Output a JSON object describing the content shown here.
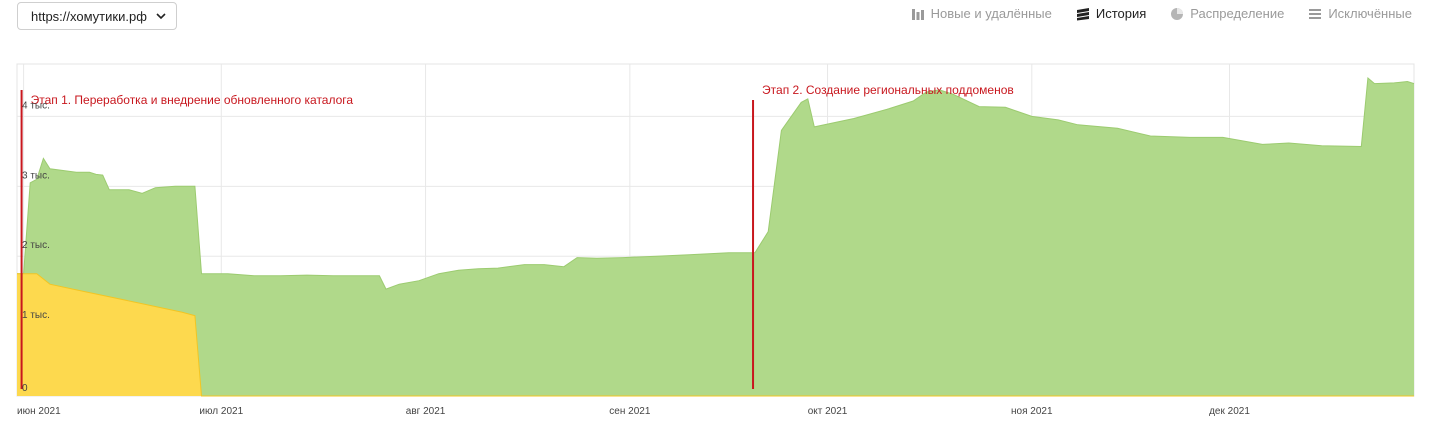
{
  "site_selector": {
    "value": "https://хомутики.рф"
  },
  "tabs": [
    {
      "label": "Новые и удалённые",
      "icon": "bar-chart-icon",
      "active": false
    },
    {
      "label": "История",
      "icon": "layers-icon",
      "active": true
    },
    {
      "label": "Распределение",
      "icon": "pie-chart-icon",
      "active": false
    },
    {
      "label": "Исключённые",
      "icon": "stack-icon",
      "active": false
    }
  ],
  "colors": {
    "green": "#b0d98a",
    "yellow": "#fdd94e",
    "annotation": "#c8171e"
  },
  "chart_data": {
    "type": "area",
    "x_tick_labels": [
      "июн 2021",
      "июл 2021",
      "авг 2021",
      "сен 2021",
      "окт 2021",
      "ноя 2021",
      "дек 2021"
    ],
    "y_tick_labels": [
      "0",
      "1 тыс.",
      "2 тыс.",
      "3 тыс.",
      "4 тыс."
    ],
    "ylim": [
      0,
      4750
    ],
    "grid": true,
    "series": [
      {
        "color": "#b0d98a",
        "points": [
          [
            "2021-05-31",
            1750
          ],
          [
            "2021-06-01",
            1750
          ],
          [
            "2021-06-02",
            3050
          ],
          [
            "2021-06-03",
            3100
          ],
          [
            "2021-06-04",
            3400
          ],
          [
            "2021-06-05",
            3250
          ],
          [
            "2021-06-09",
            3200
          ],
          [
            "2021-06-11",
            3200
          ],
          [
            "2021-06-12",
            3170
          ],
          [
            "2021-06-13",
            3160
          ],
          [
            "2021-06-14",
            2950
          ],
          [
            "2021-06-17",
            2950
          ],
          [
            "2021-06-19",
            2900
          ],
          [
            "2021-06-21",
            2980
          ],
          [
            "2021-06-24",
            3000
          ],
          [
            "2021-06-27",
            3000
          ],
          [
            "2021-06-28",
            1750
          ],
          [
            "2021-07-02",
            1750
          ],
          [
            "2021-07-06",
            1720
          ],
          [
            "2021-07-10",
            1720
          ],
          [
            "2021-07-14",
            1730
          ],
          [
            "2021-07-18",
            1720
          ],
          [
            "2021-07-22",
            1720
          ],
          [
            "2021-07-25",
            1720
          ],
          [
            "2021-07-26",
            1530
          ],
          [
            "2021-07-28",
            1600
          ],
          [
            "2021-07-31",
            1650
          ],
          [
            "2021-08-03",
            1750
          ],
          [
            "2021-08-06",
            1800
          ],
          [
            "2021-08-09",
            1820
          ],
          [
            "2021-08-12",
            1830
          ],
          [
            "2021-08-16",
            1880
          ],
          [
            "2021-08-19",
            1880
          ],
          [
            "2021-08-22",
            1850
          ],
          [
            "2021-08-24",
            1980
          ],
          [
            "2021-08-27",
            1970
          ],
          [
            "2021-08-31",
            1980
          ],
          [
            "2021-09-05",
            2000
          ],
          [
            "2021-09-10",
            2020
          ],
          [
            "2021-09-16",
            2050
          ],
          [
            "2021-09-20",
            2050
          ],
          [
            "2021-09-22",
            2350
          ],
          [
            "2021-09-24",
            3800
          ],
          [
            "2021-09-27",
            4200
          ],
          [
            "2021-09-28",
            4250
          ],
          [
            "2021-09-29",
            3850
          ],
          [
            "2021-10-05",
            3970
          ],
          [
            "2021-10-10",
            4100
          ],
          [
            "2021-10-14",
            4220
          ],
          [
            "2021-10-16",
            4350
          ],
          [
            "2021-10-18",
            4380
          ],
          [
            "2021-10-20",
            4320
          ],
          [
            "2021-10-24",
            4140
          ],
          [
            "2021-10-28",
            4130
          ],
          [
            "2021-11-01",
            4000
          ],
          [
            "2021-11-05",
            3950
          ],
          [
            "2021-11-08",
            3880
          ],
          [
            "2021-11-14",
            3830
          ],
          [
            "2021-11-19",
            3720
          ],
          [
            "2021-11-25",
            3700
          ],
          [
            "2021-11-30",
            3700
          ],
          [
            "2021-12-06",
            3600
          ],
          [
            "2021-12-10",
            3620
          ],
          [
            "2021-12-15",
            3580
          ],
          [
            "2021-12-21",
            3570
          ],
          [
            "2021-12-22",
            4550
          ],
          [
            "2021-12-23",
            4470
          ],
          [
            "2021-12-26",
            4480
          ],
          [
            "2021-12-28",
            4500
          ],
          [
            "2021-12-29",
            4470
          ]
        ]
      },
      {
        "color": "#fdd94e",
        "points": [
          [
            "2021-05-31",
            1750
          ],
          [
            "2021-06-03",
            1750
          ],
          [
            "2021-06-05",
            1600
          ],
          [
            "2021-06-10",
            1500
          ],
          [
            "2021-06-15",
            1400
          ],
          [
            "2021-06-20",
            1300
          ],
          [
            "2021-06-25",
            1200
          ],
          [
            "2021-06-27",
            1150
          ],
          [
            "2021-06-28",
            0
          ],
          [
            "2021-12-29",
            0
          ]
        ]
      }
    ],
    "annotations": [
      {
        "date": "2021-06-01",
        "text": "Этап 1. Переработка и внедрение обновленного каталога"
      },
      {
        "date": "2021-09-20",
        "text": "Этап 2. Создание региональных поддоменов"
      }
    ]
  }
}
